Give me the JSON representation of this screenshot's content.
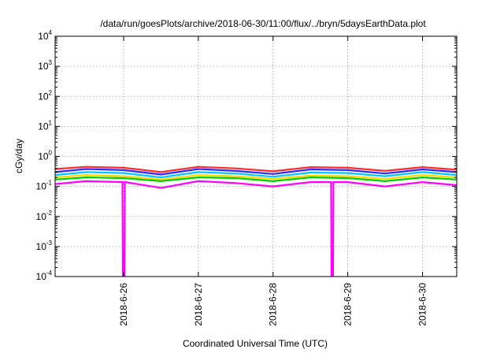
{
  "chart_data": {
    "type": "line",
    "title": "/data/run/goesPlots/archive/2018-06-30/11:00/flux/../bryn/5daysEarthData.plot",
    "xlabel": "Coordinated Universal Time (UTC)",
    "ylabel": "cGy/day",
    "x_range": [
      "2018-06-25T02:00",
      "2018-06-30T11:00"
    ],
    "y_scale": "log",
    "ylim": [
      0.0001,
      10000
    ],
    "y_ticks": [
      {
        "value": 0.0001,
        "base": "10",
        "exp": "-4"
      },
      {
        "value": 0.001,
        "base": "10",
        "exp": "-3"
      },
      {
        "value": 0.01,
        "base": "10",
        "exp": "-2"
      },
      {
        "value": 0.1,
        "base": "10",
        "exp": "-1"
      },
      {
        "value": 1,
        "base": "10",
        "exp": "0"
      },
      {
        "value": 10,
        "base": "10",
        "exp": "1"
      },
      {
        "value": 100,
        "base": "10",
        "exp": "2"
      },
      {
        "value": 1000,
        "base": "10",
        "exp": "3"
      },
      {
        "value": 10000,
        "base": "10",
        "exp": "4"
      }
    ],
    "x_ticks": [
      "2018-6-26",
      "2018-6-27",
      "2018-6-28",
      "2018-6-29",
      "2018-6-30"
    ],
    "grid": true,
    "legend": "none",
    "series": [
      {
        "color": "#ff2a2a",
        "x": [
          "2018-06-25T02:00",
          "2018-06-25T12:00",
          "2018-06-26T00:00",
          "2018-06-26T12:00",
          "2018-06-27T00:00",
          "2018-06-27T12:00",
          "2018-06-28T00:00",
          "2018-06-28T12:00",
          "2018-06-29T00:00",
          "2018-06-29T12:00",
          "2018-06-30T00:00",
          "2018-06-30T11:00"
        ],
        "values": [
          0.38,
          0.45,
          0.42,
          0.3,
          0.45,
          0.4,
          0.32,
          0.44,
          0.42,
          0.33,
          0.44,
          0.36
        ]
      },
      {
        "color": "#2a2aff",
        "x": [
          "2018-06-25T02:00",
          "2018-06-25T12:00",
          "2018-06-26T00:00",
          "2018-06-26T12:00",
          "2018-06-27T00:00",
          "2018-06-27T12:00",
          "2018-06-28T00:00",
          "2018-06-28T12:00",
          "2018-06-29T00:00",
          "2018-06-29T12:00",
          "2018-06-30T00:00",
          "2018-06-30T11:00"
        ],
        "values": [
          0.3,
          0.38,
          0.35,
          0.25,
          0.38,
          0.33,
          0.26,
          0.37,
          0.35,
          0.27,
          0.37,
          0.3
        ]
      },
      {
        "color": "#00c8ff",
        "x": [
          "2018-06-25T02:00",
          "2018-06-25T12:00",
          "2018-06-26T00:00",
          "2018-06-26T12:00",
          "2018-06-27T00:00",
          "2018-06-27T12:00",
          "2018-06-28T00:00",
          "2018-06-28T12:00",
          "2018-06-29T00:00",
          "2018-06-29T12:00",
          "2018-06-30T00:00",
          "2018-06-30T11:00"
        ],
        "values": [
          0.24,
          0.3,
          0.28,
          0.2,
          0.3,
          0.27,
          0.21,
          0.29,
          0.28,
          0.22,
          0.3,
          0.24
        ]
      },
      {
        "color": "#ffd700",
        "x": [
          "2018-06-25T02:00",
          "2018-06-25T12:00",
          "2018-06-26T00:00",
          "2018-06-26T12:00",
          "2018-06-27T00:00",
          "2018-06-27T12:00",
          "2018-06-28T00:00",
          "2018-06-28T12:00",
          "2018-06-29T00:00",
          "2018-06-29T12:00",
          "2018-06-30T00:00",
          "2018-06-30T11:00"
        ],
        "values": [
          0.2,
          0.24,
          0.22,
          0.17,
          0.24,
          0.22,
          0.18,
          0.23,
          0.22,
          0.18,
          0.24,
          0.2
        ]
      },
      {
        "color": "#00d000",
        "x": [
          "2018-06-25T02:00",
          "2018-06-25T12:00",
          "2018-06-26T00:00",
          "2018-06-26T12:00",
          "2018-06-27T00:00",
          "2018-06-27T12:00",
          "2018-06-28T00:00",
          "2018-06-28T12:00",
          "2018-06-29T00:00",
          "2018-06-29T12:00",
          "2018-06-30T00:00",
          "2018-06-30T11:00"
        ],
        "values": [
          0.17,
          0.2,
          0.19,
          0.15,
          0.2,
          0.19,
          0.15,
          0.2,
          0.19,
          0.15,
          0.2,
          0.17
        ]
      },
      {
        "color": "#ff00ff",
        "x": [
          "2018-06-25T02:00",
          "2018-06-25T12:00",
          "2018-06-26T00:00",
          "2018-06-26T12:00",
          "2018-06-27T00:00",
          "2018-06-27T12:00",
          "2018-06-28T00:00",
          "2018-06-28T12:00",
          "2018-06-29T00:00",
          "2018-06-29T12:00",
          "2018-06-30T00:00",
          "2018-06-30T11:00"
        ],
        "values": [
          0.12,
          0.15,
          0.14,
          0.09,
          0.15,
          0.13,
          0.1,
          0.14,
          0.14,
          0.1,
          0.14,
          0.11
        ]
      }
    ],
    "dropouts": [
      {
        "series": 5,
        "x": "2018-06-26T00:00",
        "value": 0.0001
      },
      {
        "series": 5,
        "x": "2018-06-28T19:00",
        "value": 0.0001
      }
    ]
  }
}
